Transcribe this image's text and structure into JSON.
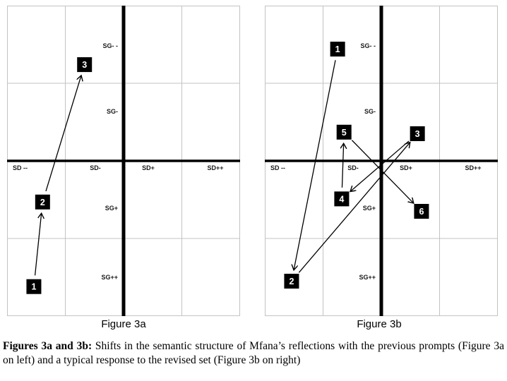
{
  "colors": {
    "grid": "#c3c3c3",
    "axis": "#000000",
    "marker_bg": "#000000",
    "marker_text": "#ffffff",
    "arrow": "#000000"
  },
  "caption": {
    "bold": "Figures 3a and 3b:",
    "text": " Shifts in the semantic structure of Mfana’s reflections with the previous prompts (Figure 3a on left) and a typical response to the revised set (Figure 3b on right)"
  },
  "chart_data": [
    {
      "type": "scatter",
      "title": "Figure 3a",
      "axis_note": "semantic differential grid; sd positive toward SD++ (right), sg positive toward SG++ (down); units = one grid cell from the thick center axes",
      "x_axis": {
        "labels": [
          "SD --",
          "SD-",
          "SD+",
          "SD++"
        ]
      },
      "y_axis": {
        "labels": [
          "SG- -",
          "SG-",
          "SG+",
          "SG++"
        ]
      },
      "grid": true,
      "points": [
        {
          "label": "1",
          "sd": -1.54,
          "sg": 1.62
        },
        {
          "label": "2",
          "sd": -1.39,
          "sg": 0.53
        },
        {
          "label": "3",
          "sd": -0.67,
          "sg": -1.24
        }
      ],
      "arrows": [
        {
          "from": "1",
          "to": "2"
        },
        {
          "from": "2",
          "to": "3"
        }
      ]
    },
    {
      "type": "scatter",
      "title": "Figure 3b",
      "axis_note": "semantic differential grid; sd positive toward SD++ (right), sg positive toward SG++ (down); units = one grid cell from the thick center axes",
      "x_axis": {
        "labels": [
          "SD --",
          "SD-",
          "SD+",
          "SD++"
        ]
      },
      "y_axis": {
        "labels": [
          "SG- -",
          "SG-",
          "SG+",
          "SG++"
        ]
      },
      "grid": true,
      "points": [
        {
          "label": "1",
          "sd": -0.75,
          "sg": -1.44
        },
        {
          "label": "2",
          "sd": -1.54,
          "sg": 1.55
        },
        {
          "label": "3",
          "sd": 0.62,
          "sg": -0.35
        },
        {
          "label": "4",
          "sd": -0.68,
          "sg": 0.49
        },
        {
          "label": "5",
          "sd": -0.64,
          "sg": -0.37
        },
        {
          "label": "6",
          "sd": 0.69,
          "sg": 0.65
        }
      ],
      "arrows": [
        {
          "from": "1",
          "to": "2"
        },
        {
          "from": "2",
          "to": "3"
        },
        {
          "from": "3",
          "to": "4"
        },
        {
          "from": "4",
          "to": "5"
        },
        {
          "from": "5",
          "to": "6"
        }
      ]
    }
  ]
}
